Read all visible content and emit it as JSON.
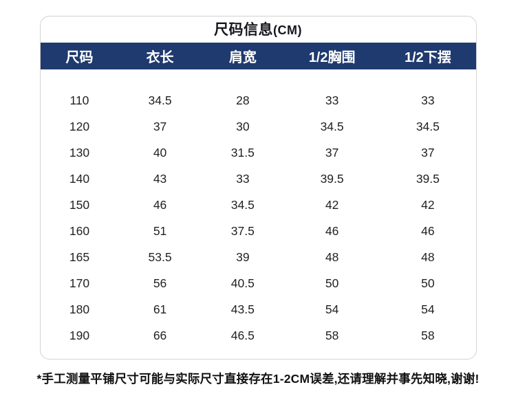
{
  "title": {
    "text": "尺码信息",
    "unit": "(CM)",
    "color": "#15161c"
  },
  "header": {
    "background": "#1f3a6e",
    "text_color": "#ffffff",
    "columns": [
      "尺码",
      "衣长",
      "肩宽",
      "1/2胸围",
      "1/2下摆"
    ]
  },
  "chart_data": {
    "type": "table",
    "title": "尺码信息(CM)",
    "columns": [
      "尺码",
      "衣长",
      "肩宽",
      "1/2胸围",
      "1/2下摆"
    ],
    "rows": [
      [
        "110",
        "34.5",
        "28",
        "33",
        "33"
      ],
      [
        "120",
        "37",
        "30",
        "34.5",
        "34.5"
      ],
      [
        "130",
        "40",
        "31.5",
        "37",
        "37"
      ],
      [
        "140",
        "43",
        "33",
        "39.5",
        "39.5"
      ],
      [
        "150",
        "46",
        "34.5",
        "42",
        "42"
      ],
      [
        "160",
        "51",
        "37.5",
        "46",
        "46"
      ],
      [
        "165",
        "53.5",
        "39",
        "48",
        "48"
      ],
      [
        "170",
        "56",
        "40.5",
        "50",
        "50"
      ],
      [
        "180",
        "61",
        "43.5",
        "54",
        "54"
      ],
      [
        "190",
        "66",
        "46.5",
        "58",
        "58"
      ]
    ]
  },
  "card": {
    "background": "#ffffff",
    "border_color": "#d2d2d2"
  },
  "footer": {
    "note": "*手工测量平铺尺寸可能与实际尺寸直接存在1-2CM误差,还请理解并事先知晓,谢谢!"
  }
}
